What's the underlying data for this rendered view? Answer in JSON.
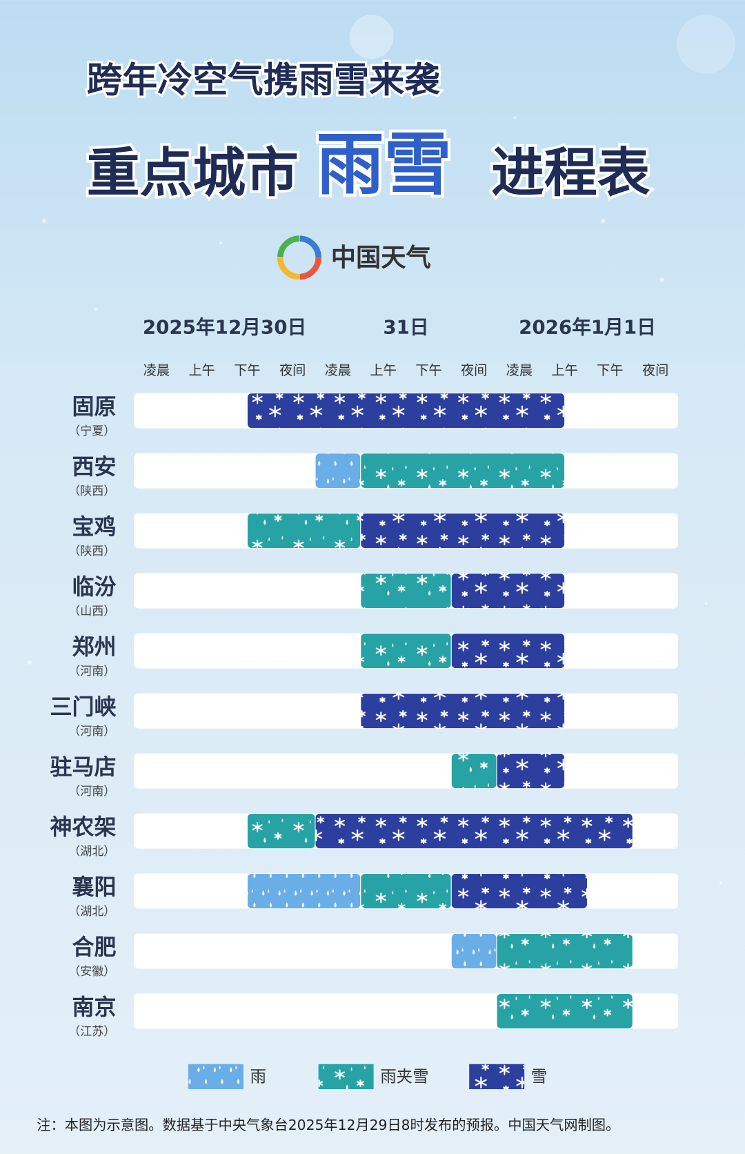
{
  "chart_data": {
    "type": "timeline",
    "title": "跨年冷空气携雨雪来袭",
    "subtitle_prefix": "重点城市",
    "subtitle_highlight": "雨雪",
    "subtitle_suffix": "进程表",
    "brand": "中国天气",
    "dates": [
      "2025年12月30日",
      "31日",
      "2026年1月1日"
    ],
    "periods": [
      "凌晨",
      "上午",
      "下午",
      "夜间",
      "凌晨",
      "上午",
      "下午",
      "夜间",
      "凌晨",
      "上午",
      "下午",
      "夜间"
    ],
    "xlim": [
      0,
      12
    ],
    "types": [
      {
        "name": "雨",
        "color": "#6aaee8"
      },
      {
        "name": "雨夹雪",
        "color": "#27a3a6"
      },
      {
        "name": "雪",
        "color": "#2c3f9e"
      }
    ],
    "rows": [
      {
        "city": "固原",
        "province": "（宁夏）",
        "segments": [
          {
            "type": 2,
            "start": 2.5,
            "end": 9.5
          }
        ]
      },
      {
        "city": "西安",
        "province": "（陕西）",
        "segments": [
          {
            "type": 0,
            "start": 4,
            "end": 5
          },
          {
            "type": 1,
            "start": 5,
            "end": 9.5
          }
        ]
      },
      {
        "city": "宝鸡",
        "province": "（陕西）",
        "segments": [
          {
            "type": 1,
            "start": 2.5,
            "end": 5
          },
          {
            "type": 2,
            "start": 5,
            "end": 9.5
          }
        ]
      },
      {
        "city": "临汾",
        "province": "（山西）",
        "segments": [
          {
            "type": 1,
            "start": 5,
            "end": 7
          },
          {
            "type": 2,
            "start": 7,
            "end": 9.5
          }
        ]
      },
      {
        "city": "郑州",
        "province": "（河南）",
        "segments": [
          {
            "type": 1,
            "start": 5,
            "end": 7
          },
          {
            "type": 2,
            "start": 7,
            "end": 9.5
          }
        ]
      },
      {
        "city": "三门峡",
        "province": "（河南）",
        "segments": [
          {
            "type": 2,
            "start": 5,
            "end": 9.5
          }
        ]
      },
      {
        "city": "驻马店",
        "province": "（河南）",
        "segments": [
          {
            "type": 1,
            "start": 7,
            "end": 8
          },
          {
            "type": 2,
            "start": 8,
            "end": 9.5
          }
        ]
      },
      {
        "city": "神农架",
        "province": "（湖北）",
        "segments": [
          {
            "type": 1,
            "start": 2.5,
            "end": 4
          },
          {
            "type": 2,
            "start": 4,
            "end": 11
          }
        ]
      },
      {
        "city": "襄阳",
        "province": "（湖北）",
        "segments": [
          {
            "type": 0,
            "start": 2.5,
            "end": 5
          },
          {
            "type": 1,
            "start": 5,
            "end": 7
          },
          {
            "type": 2,
            "start": 7,
            "end": 10
          }
        ]
      },
      {
        "city": "合肥",
        "province": "（安徽）",
        "segments": [
          {
            "type": 0,
            "start": 7,
            "end": 8
          },
          {
            "type": 1,
            "start": 8,
            "end": 11
          }
        ]
      },
      {
        "city": "南京",
        "province": "（江苏）",
        "segments": [
          {
            "type": 1,
            "start": 8,
            "end": 11
          }
        ]
      }
    ],
    "note": "注：本图为示意图。数据基于中央气象台2025年12月29日8时发布的预报。中国天气网制图。"
  }
}
